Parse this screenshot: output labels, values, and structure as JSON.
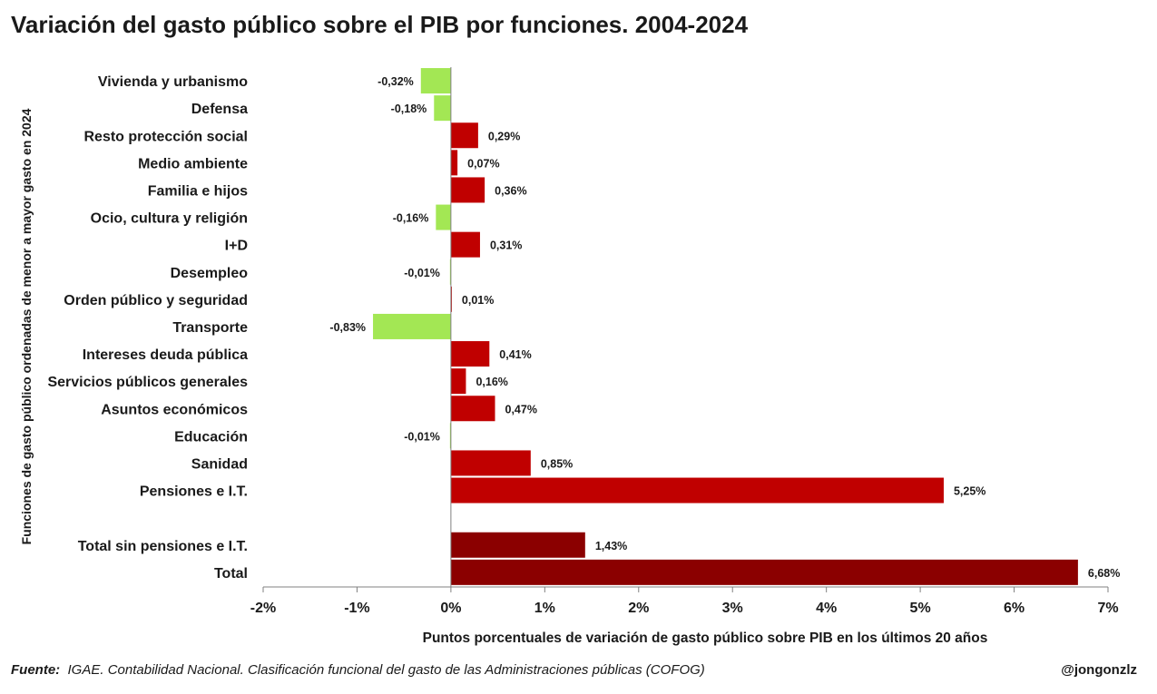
{
  "title": "Variación del gasto público sobre el PIB por funciones. 2004-2024",
  "colors": {
    "positive": "#c00000",
    "negative": "#a3e754",
    "totals": "#8b0000",
    "axis": "#808080"
  },
  "chart_data": {
    "type": "bar",
    "orientation": "horizontal",
    "xlabel": "Puntos porcentuales de variación  de gasto público sobre PIB en los últimos  20 años",
    "ylabel": "Funciones de gasto público ordenadas de menor a mayor gasto en 2024",
    "xlim": [
      -2,
      7
    ],
    "x_ticks": [
      -2,
      -1,
      0,
      1,
      2,
      3,
      4,
      5,
      6,
      7
    ],
    "x_tick_labels": [
      "-2%",
      "-1%",
      "0%",
      "1%",
      "2%",
      "3%",
      "4%",
      "5%",
      "6%",
      "7%"
    ],
    "grid": false,
    "legend": "none",
    "categories": [
      "Vivienda y urbanismo",
      "Defensa",
      "Resto protección social",
      "Medio ambiente",
      "Familia e hijos",
      "Ocio, cultura y religión",
      "I+D",
      "Desempleo",
      "Orden público y seguridad",
      "Transporte",
      "Intereses deuda pública",
      "Servicios públicos generales",
      "Asuntos económicos",
      "Educación",
      "Sanidad",
      "Pensiones e I.T.",
      "Total sin pensiones e I.T.",
      "Total"
    ],
    "values": [
      -0.32,
      -0.18,
      0.29,
      0.07,
      0.36,
      -0.16,
      0.31,
      -0.01,
      0.01,
      -0.83,
      0.41,
      0.16,
      0.47,
      -0.01,
      0.85,
      5.25,
      1.43,
      6.68
    ],
    "data_labels": [
      "-0,32%",
      "-0,18%",
      "0,29%",
      "0,07%",
      "0,36%",
      "-0,16%",
      "0,31%",
      "-0,01%",
      "0,01%",
      "-0,83%",
      "0,41%",
      "0,16%",
      "0,47%",
      "-0,01%",
      "0,85%",
      "5,25%",
      "1,43%",
      "6,68%"
    ],
    "total_rows": [
      "Total sin pensiones e I.T.",
      "Total"
    ]
  },
  "footer": {
    "source_label": "Fuente:",
    "source_text": "IGAE. Contabilidad Nacional. Clasificación funcional del gasto de las Administraciones públicas (COFOG)",
    "credit": "@jongonzlz"
  }
}
